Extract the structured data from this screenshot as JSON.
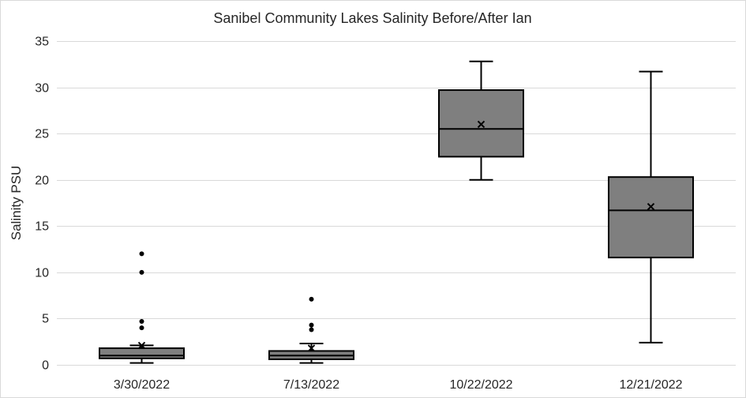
{
  "chart_data": {
    "type": "box",
    "title": "Sanibel Community Lakes Salinity Before/After Ian",
    "xlabel": "",
    "ylabel": "Salinity PSU",
    "ylim": [
      0,
      35
    ],
    "yticks": [
      0,
      5,
      10,
      15,
      20,
      25,
      30,
      35
    ],
    "grid": true,
    "categories": [
      "3/30/2022",
      "7/13/2022",
      "10/22/2022",
      "12/21/2022"
    ],
    "boxes": [
      {
        "label": "3/30/2022",
        "min": 0.2,
        "q1": 0.7,
        "median": 1.0,
        "q3": 1.8,
        "max": 2.1,
        "mean": 2.1,
        "outliers": [
          4.0,
          4.7,
          10.0,
          12.0
        ]
      },
      {
        "label": "7/13/2022",
        "min": 0.2,
        "q1": 0.6,
        "median": 1.0,
        "q3": 1.5,
        "max": 2.3,
        "mean": 1.8,
        "outliers": [
          3.8,
          4.3,
          7.1
        ]
      },
      {
        "label": "10/22/2022",
        "min": 20.0,
        "q1": 22.5,
        "median": 25.5,
        "q3": 29.7,
        "max": 32.8,
        "mean": 26.0,
        "outliers": []
      },
      {
        "label": "12/21/2022",
        "min": 2.4,
        "q1": 11.6,
        "median": 16.7,
        "q3": 20.3,
        "max": 31.7,
        "mean": 17.1,
        "outliers": []
      }
    ],
    "colors": {
      "box_fill": "#7f7f7f",
      "stroke": "#000000",
      "grid": "#d9d9d9",
      "text": "#262626"
    }
  }
}
